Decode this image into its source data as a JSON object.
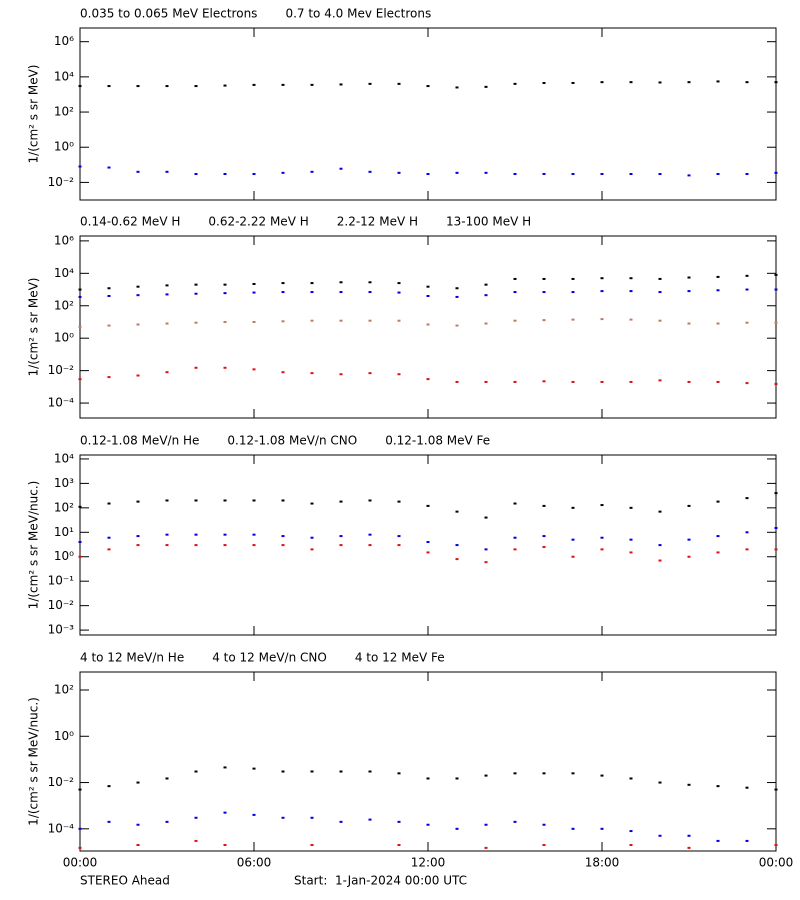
{
  "chart_data": [
    {
      "type": "scatter",
      "ylabel": "1/(cm² s sr MeV)",
      "log_y": true,
      "x": [
        0,
        1,
        2,
        3,
        4,
        5,
        6,
        7,
        8,
        9,
        10,
        11,
        12,
        13,
        14,
        15,
        16,
        17,
        18,
        19,
        20,
        21,
        22,
        23,
        24
      ],
      "xlim": [
        0,
        24
      ],
      "ylim": [
        0.001,
        6000000
      ],
      "yticks": [
        {
          "value": 0.01,
          "label": "10⁻²"
        },
        {
          "value": 1,
          "label": "10⁰"
        },
        {
          "value": 100,
          "label": "10²"
        },
        {
          "value": 10000,
          "label": "10⁴"
        },
        {
          "value": 1000000,
          "label": "10⁶"
        }
      ],
      "series": [
        {
          "name": "0.035 to 0.065 MeV Electrons",
          "color": "#000000",
          "values": [
            3000,
            3000,
            3000,
            3000,
            3000,
            3200,
            3500,
            3500,
            3500,
            3700,
            4000,
            4000,
            3000,
            2500,
            2700,
            4000,
            4500,
            4500,
            5000,
            5000,
            4800,
            5000,
            5500,
            5000,
            5000
          ]
        },
        {
          "name": "0.7 to 4.0 Mev Electrons",
          "color": "#0000dd",
          "values": [
            0.08,
            0.07,
            0.04,
            0.04,
            0.03,
            0.03,
            0.03,
            0.035,
            0.04,
            0.06,
            0.04,
            0.035,
            0.03,
            0.035,
            0.035,
            0.03,
            0.03,
            0.03,
            0.03,
            0.03,
            0.03,
            0.025,
            0.03,
            0.03,
            0.035
          ]
        }
      ]
    },
    {
      "type": "scatter",
      "ylabel": "1/(cm² s sr MeV)",
      "log_y": true,
      "x": [
        0,
        1,
        2,
        3,
        4,
        5,
        6,
        7,
        8,
        9,
        10,
        11,
        12,
        13,
        14,
        15,
        16,
        17,
        18,
        19,
        20,
        21,
        22,
        23,
        24
      ],
      "xlim": [
        0,
        24
      ],
      "ylim": [
        1.2e-05,
        2000000
      ],
      "yticks": [
        {
          "value": 0.0001,
          "label": "10⁻⁴"
        },
        {
          "value": 0.01,
          "label": "10⁻²"
        },
        {
          "value": 1,
          "label": "10⁰"
        },
        {
          "value": 100,
          "label": "10²"
        },
        {
          "value": 10000,
          "label": "10⁴"
        },
        {
          "value": 1000000,
          "label": "10⁶"
        }
      ],
      "series": [
        {
          "name": "0.14-0.62 MeV H",
          "color": "#000000",
          "values": [
            1000,
            1200,
            1500,
            1800,
            2000,
            2000,
            2200,
            2500,
            2500,
            2800,
            2800,
            2500,
            1500,
            1200,
            2000,
            4500,
            4500,
            4500,
            5000,
            5000,
            4500,
            5500,
            6000,
            7000,
            8000
          ]
        },
        {
          "name": "0.62-2.22 MeV H",
          "color": "#0000dd",
          "values": [
            350,
            400,
            450,
            500,
            550,
            600,
            650,
            700,
            700,
            700,
            700,
            650,
            400,
            350,
            450,
            700,
            700,
            700,
            800,
            800,
            700,
            800,
            900,
            1000,
            1000
          ]
        },
        {
          "name": "2.2-12 MeV H",
          "color": "#c07a64",
          "values": [
            5,
            6,
            7,
            8,
            9,
            10,
            10,
            11,
            12,
            12,
            12,
            12,
            7,
            6,
            8,
            12,
            13,
            14,
            15,
            14,
            12,
            8,
            8,
            9,
            9
          ]
        },
        {
          "name": "13-100 MeV H",
          "color": "#dd1111",
          "values": [
            0.003,
            0.004,
            0.005,
            0.008,
            0.015,
            0.015,
            0.012,
            0.008,
            0.007,
            0.006,
            0.007,
            0.006,
            0.003,
            0.002,
            0.002,
            0.002,
            0.0022,
            0.002,
            0.002,
            0.002,
            0.0025,
            0.002,
            0.002,
            0.0017,
            0.0015
          ]
        }
      ]
    },
    {
      "type": "scatter",
      "ylabel": "1/(cm² s sr MeV/nuc.)",
      "log_y": true,
      "x": [
        0,
        1,
        2,
        3,
        4,
        5,
        6,
        7,
        8,
        9,
        10,
        11,
        12,
        13,
        14,
        15,
        16,
        17,
        18,
        19,
        20,
        21,
        22,
        23,
        24
      ],
      "xlim": [
        0,
        24
      ],
      "ylim": [
        0.00063,
        14500
      ],
      "yticks": [
        {
          "value": 0.001,
          "label": "10⁻³"
        },
        {
          "value": 0.01,
          "label": "10⁻²"
        },
        {
          "value": 0.1,
          "label": "10⁻¹"
        },
        {
          "value": 1,
          "label": "10⁰"
        },
        {
          "value": 10,
          "label": "10¹"
        },
        {
          "value": 100,
          "label": "10²"
        },
        {
          "value": 1000,
          "label": "10³"
        },
        {
          "value": 10000,
          "label": "10⁴"
        }
      ],
      "series": [
        {
          "name": "0.12-1.08 MeV/n He",
          "color": "#000000",
          "values": [
            110,
            150,
            180,
            200,
            200,
            200,
            200,
            200,
            150,
            180,
            200,
            180,
            120,
            70,
            40,
            150,
            120,
            100,
            130,
            100,
            70,
            120,
            180,
            250,
            400
          ]
        },
        {
          "name": "0.12-1.08 MeV/n CNO",
          "color": "#0000dd",
          "values": [
            4,
            6,
            7,
            8,
            8,
            8,
            8,
            7,
            6,
            7,
            8,
            7,
            4,
            3,
            2,
            6,
            7,
            5,
            6,
            5,
            3,
            5,
            7,
            10,
            15
          ]
        },
        {
          "name": "0.12-1.08 MeV Fe",
          "color": "#dd1111",
          "values": [
            1,
            2,
            3,
            3,
            3,
            3,
            3,
            3,
            2,
            3,
            3,
            3,
            1.5,
            0.8,
            0.6,
            2,
            2.5,
            1,
            2,
            1.5,
            0.7,
            1,
            1.5,
            2,
            2
          ]
        }
      ]
    },
    {
      "type": "scatter",
      "ylabel": "1/(cm² s sr MeV/nuc.)",
      "log_y": true,
      "x": [
        0,
        1,
        2,
        3,
        4,
        5,
        6,
        7,
        8,
        9,
        10,
        11,
        12,
        13,
        14,
        15,
        16,
        17,
        18,
        19,
        20,
        21,
        22,
        23,
        24
      ],
      "xlim": [
        0,
        24
      ],
      "ylim": [
        1.1e-05,
        600
      ],
      "xticks": [
        {
          "value": 0,
          "label": "00:00"
        },
        {
          "value": 6,
          "label": "06:00"
        },
        {
          "value": 12,
          "label": "12:00"
        },
        {
          "value": 18,
          "label": "18:00"
        },
        {
          "value": 24,
          "label": "00:00"
        }
      ],
      "yticks": [
        {
          "value": 0.0001,
          "label": "10⁻⁴"
        },
        {
          "value": 0.01,
          "label": "10⁻²"
        },
        {
          "value": 1,
          "label": "10⁰"
        },
        {
          "value": 100,
          "label": "10²"
        }
      ],
      "series": [
        {
          "name": "4 to 12 MeV/n He",
          "color": "#000000",
          "values": [
            0.005,
            0.007,
            0.01,
            0.015,
            0.03,
            0.045,
            0.04,
            0.03,
            0.03,
            0.03,
            0.03,
            0.025,
            0.015,
            0.015,
            0.02,
            0.025,
            0.025,
            0.025,
            0.02,
            0.015,
            0.01,
            0.008,
            0.007,
            0.006,
            0.005
          ]
        },
        {
          "name": "4 to 12 MeV/n CNO",
          "color": "#0000dd",
          "values": [
            0.0001,
            0.0002,
            0.00015,
            0.0002,
            0.0003,
            0.0005,
            0.0004,
            0.0003,
            0.0003,
            0.0002,
            0.00025,
            0.0002,
            0.00015,
            0.0001,
            0.00015,
            0.0002,
            0.00015,
            0.0001,
            0.0001,
            8e-05,
            5e-05,
            5e-05,
            3e-05,
            3e-05,
            2e-05
          ]
        },
        {
          "name": "4 to 12 MeV Fe",
          "color": "#dd1111",
          "values": [
            1.5e-05,
            null,
            2e-05,
            null,
            3e-05,
            2e-05,
            null,
            null,
            2e-05,
            null,
            null,
            2e-05,
            null,
            null,
            1.5e-05,
            null,
            2e-05,
            null,
            null,
            2e-05,
            null,
            1.5e-05,
            null,
            null,
            2e-05
          ]
        }
      ]
    }
  ],
  "footer": {
    "left": "STEREO Ahead",
    "right": "Start:  1-Jan-2024 00:00 UTC"
  }
}
